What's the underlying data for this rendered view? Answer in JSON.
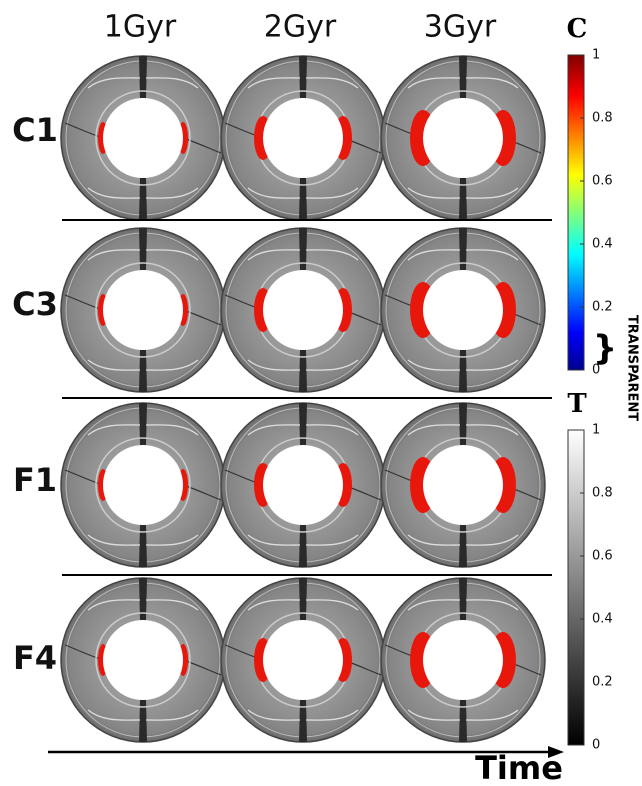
{
  "columns": [
    "1Gyr",
    "2Gyr",
    "3Gyr"
  ],
  "rows": [
    "C1",
    "C3",
    "F1",
    "F4"
  ],
  "colorbars": [
    {
      "title": "C",
      "ticks": [
        0,
        0.2,
        0.4,
        0.6,
        0.8,
        1
      ],
      "range_label": "TRANSPARENT"
    },
    {
      "title": "T",
      "ticks": [
        0,
        0.2,
        0.4,
        0.6,
        0.8,
        1
      ]
    }
  ],
  "axis_label": "Time"
}
